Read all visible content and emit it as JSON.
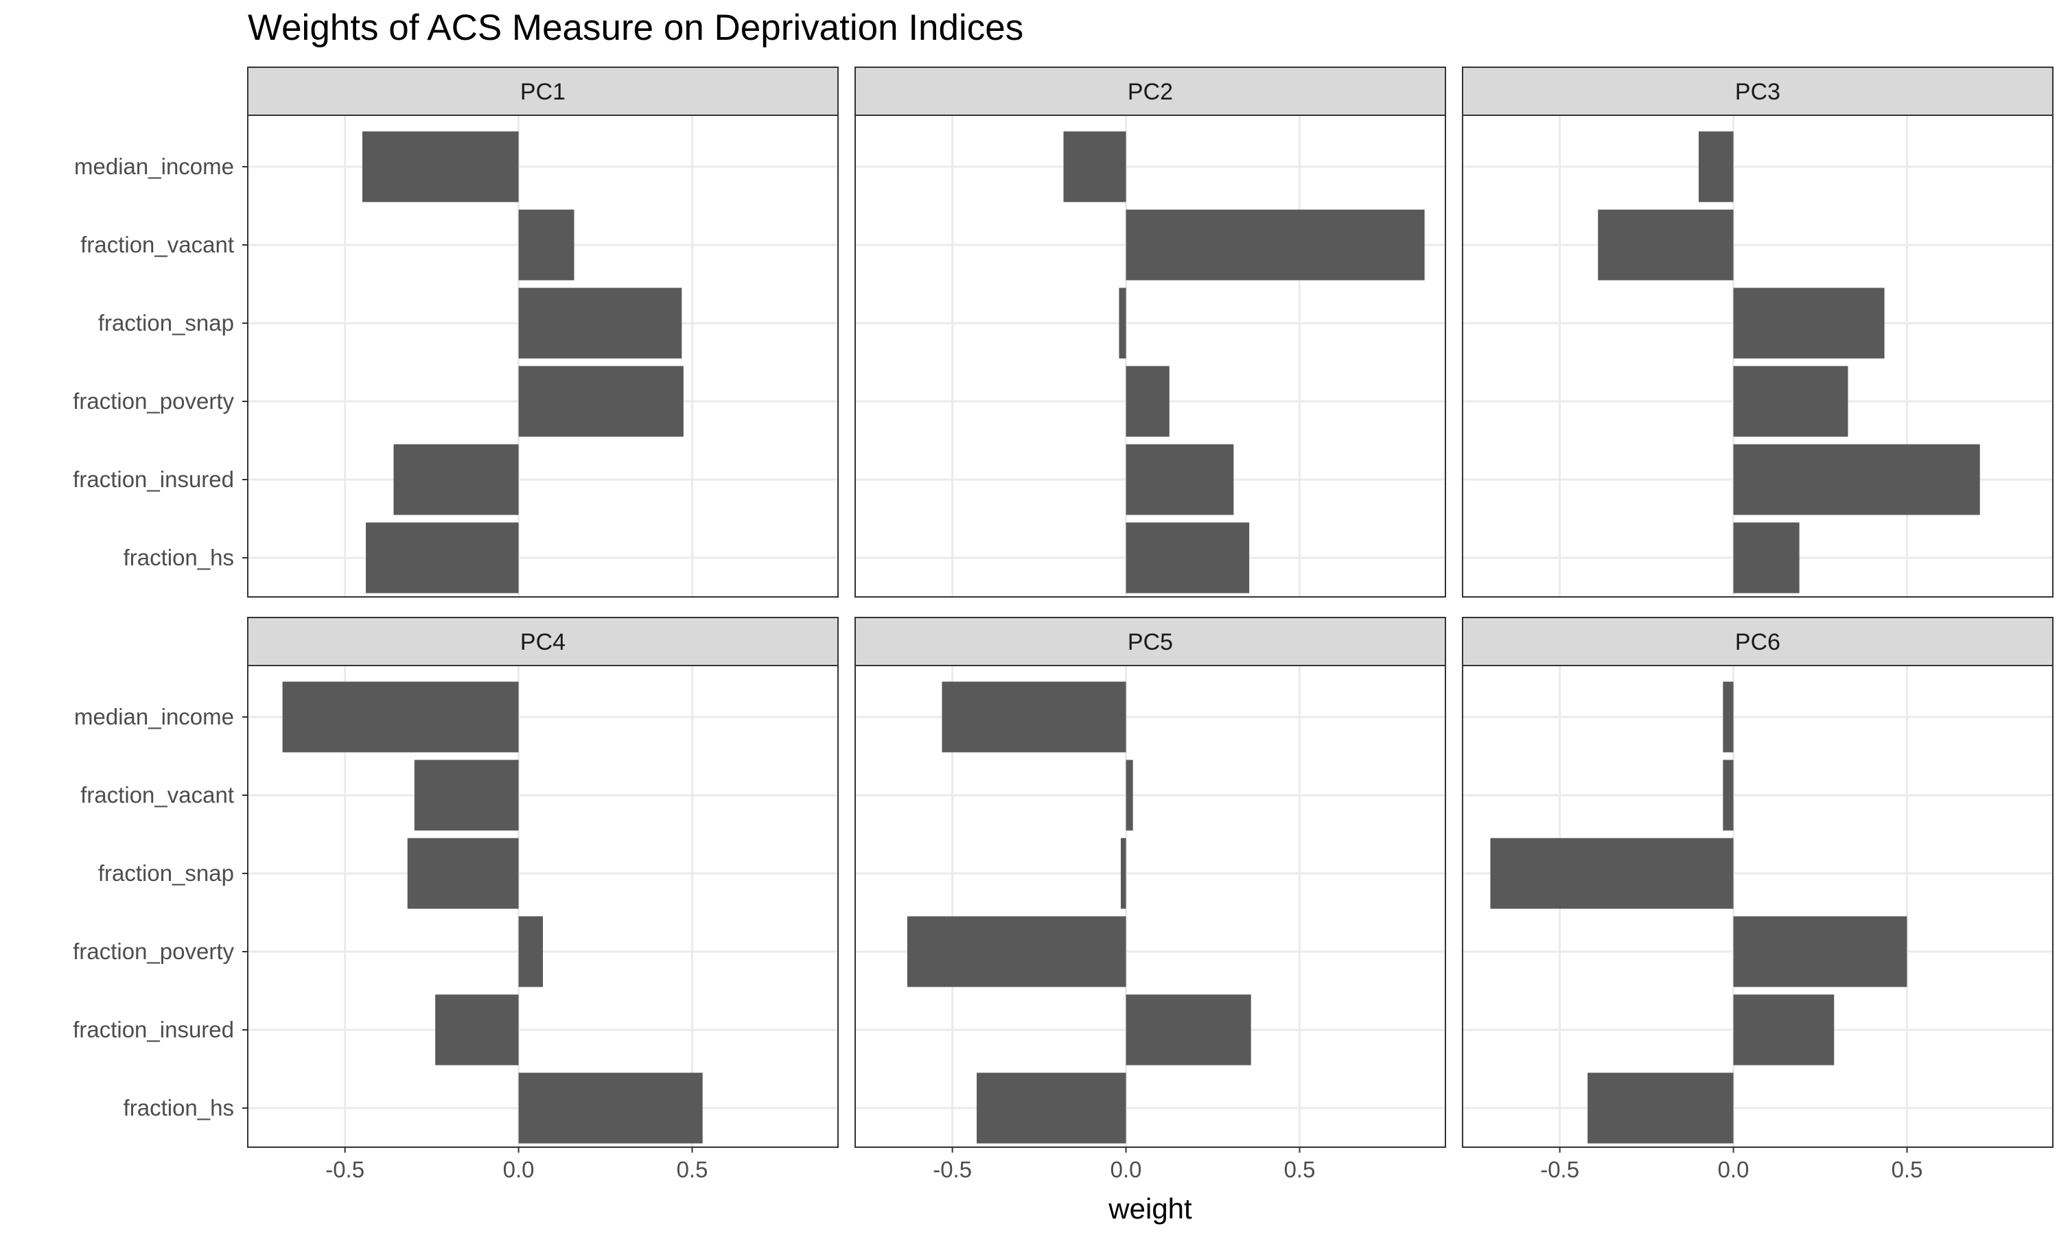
{
  "chart_data": {
    "type": "bar",
    "orientation": "horizontal",
    "title": "Weights of ACS Measure on Deprivation Indices",
    "xlabel": "weight",
    "ylabel": "",
    "xlim": [
      -0.78,
      0.92
    ],
    "xticks": [
      -0.5,
      0.0,
      0.5
    ],
    "xtick_labels": [
      "-0.5",
      "0.0",
      "0.5"
    ],
    "categories": [
      "median_income",
      "fraction_vacant",
      "fraction_snap",
      "fraction_poverty",
      "fraction_insured",
      "fraction_hs"
    ],
    "grid": true,
    "bar_color": "#595959",
    "panels": [
      {
        "name": "PC1",
        "values": [
          -0.45,
          0.16,
          0.47,
          0.475,
          -0.36,
          -0.44
        ]
      },
      {
        "name": "PC2",
        "values": [
          -0.18,
          0.86,
          -0.02,
          0.125,
          0.31,
          0.355
        ]
      },
      {
        "name": "PC3",
        "values": [
          -0.1,
          -0.39,
          0.435,
          0.33,
          0.71,
          0.19
        ]
      },
      {
        "name": "PC4",
        "values": [
          -0.68,
          -0.3,
          -0.32,
          0.07,
          -0.24,
          0.53
        ]
      },
      {
        "name": "PC5",
        "values": [
          -0.53,
          0.02,
          -0.015,
          -0.63,
          0.36,
          -0.43
        ]
      },
      {
        "name": "PC6",
        "values": [
          -0.03,
          -0.03,
          -0.7,
          0.5,
          0.29,
          -0.42
        ]
      }
    ]
  }
}
